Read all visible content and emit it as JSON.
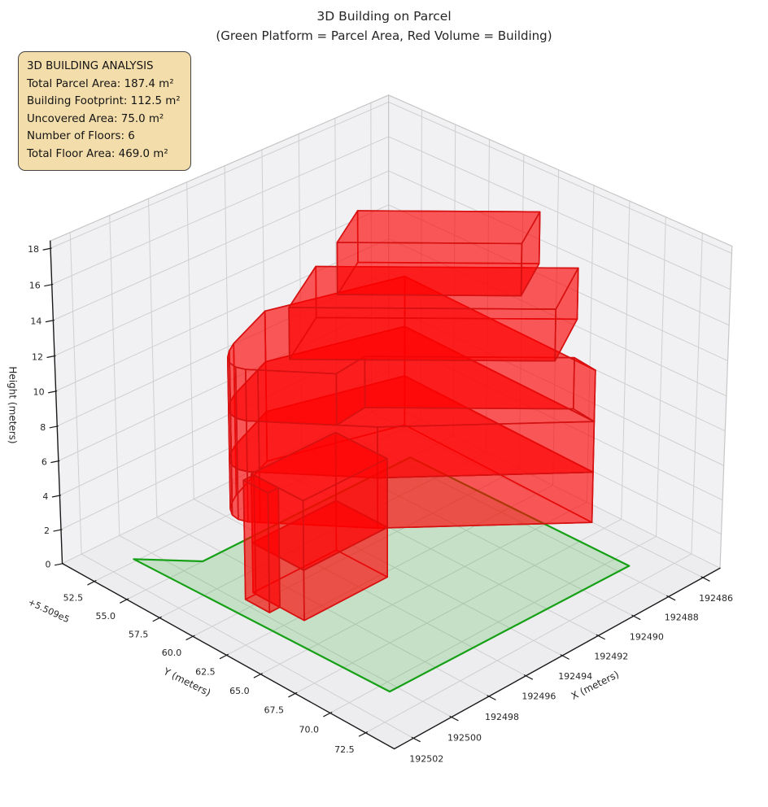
{
  "title": {
    "line1": "3D Building on Parcel",
    "line2": "(Green Platform = Parcel Area, Red Volume = Building)"
  },
  "info_box": {
    "bg": "#f3ddab",
    "border": "#454545",
    "lines": [
      "3D BUILDING ANALYSIS",
      "Total Parcel Area: 187.4 m²",
      "Building Footprint: 112.5 m²",
      "Uncovered Area: 75.0 m²",
      "Number of Floors: 6",
      "Total Floor Area: 469.0 m²"
    ]
  },
  "chart_data": {
    "type": "3d-building-plot",
    "title": "3D Building on Parcel",
    "subtitle": "(Green Platform = Parcel Area, Red Volume = Building)",
    "legend_note": "Green Platform = Parcel Area, Red Volume = Building",
    "axes": {
      "x": {
        "label": "X (meters)",
        "range": [
          192485,
          192503
        ],
        "ticks": [
          192486,
          192488,
          192490,
          192492,
          192494,
          192496,
          192498,
          192500,
          192502
        ],
        "tick_labels": [
          "192486",
          "192488",
          "192490",
          "192492",
          "192494",
          "192496",
          "192498",
          "192500",
          "192502"
        ]
      },
      "y": {
        "label": "Y (meters)",
        "range": [
          550950,
          550974.5
        ],
        "ticks": [
          550952.5,
          550955,
          550957.5,
          550960,
          550962.5,
          550965,
          550967.5,
          550970,
          550972.5
        ],
        "tick_labels": [
          "52.5",
          "55.0",
          "57.5",
          "60.0",
          "62.5",
          "65.0",
          "67.5",
          "70.0",
          "72.5"
        ],
        "offset_label": "+5.509e5"
      },
      "z": {
        "label": "Height (meters)",
        "range": [
          0,
          18.4
        ],
        "ticks": [
          0,
          2,
          4,
          6,
          8,
          10,
          12,
          14,
          16,
          18
        ],
        "tick_labels": [
          "0",
          "2",
          "4",
          "6",
          "8",
          "10",
          "12",
          "14",
          "16",
          "18"
        ]
      },
      "grid": true
    },
    "colors": {
      "pane": "#f1f1f3",
      "floor_pane": "#ededf0",
      "grid": "#cfcfcf",
      "pane_edge": "#c6c6c6",
      "axis_line": "#1a1a1a",
      "tick_text": "#262626",
      "building_fill": "rgba(255,0,0,0.40)",
      "building_edge": "#d61111",
      "parcel_fill": "rgba(0,158,0,0.17)",
      "parcel_edge": "#16a016"
    },
    "parcel": {
      "area_m2": 187.4,
      "polygon": [
        [
          192500.8,
          550952.3
        ],
        [
          192499.0,
          550955.0
        ],
        [
          192487.5,
          550955.0
        ],
        [
          192487.4,
          550971.0
        ],
        [
          192500.4,
          550970.7
        ]
      ]
    },
    "building": {
      "footprint_m2": 112.5,
      "uncovered_m2": 75.0,
      "floors": 6,
      "total_floor_area_m2": 469.0,
      "floor_height_m": 2.917,
      "top_height_m": 17.5,
      "volumes": [
        {
          "name": "floor-2",
          "z": [
            2.917,
            5.833
          ],
          "footprint": [
            [
              192497.16,
              550955.01
            ],
            [
              192497.66,
              550955.4
            ],
            [
              192498.07,
              550955.85
            ],
            [
              192498.32,
              550956.35
            ],
            [
              192498.38,
              550956.89
            ],
            [
              192498.24,
              550957.43
            ],
            [
              192497.94,
              550957.91
            ],
            [
              192495.01,
              550962.6
            ],
            [
              192488.8,
              550970.01
            ],
            [
              192488.57,
              550955.99
            ],
            [
              192494.49,
              550953.6
            ]
          ]
        },
        {
          "name": "floor-3",
          "z": [
            5.833,
            8.75
          ],
          "footprint": [
            [
              192497.16,
              550955.01
            ],
            [
              192497.66,
              550955.4
            ],
            [
              192498.07,
              550955.85
            ],
            [
              192498.32,
              550956.35
            ],
            [
              192498.38,
              550956.89
            ],
            [
              192498.24,
              550957.43
            ],
            [
              192497.94,
              550957.91
            ],
            [
              192495.01,
              550962.6
            ],
            [
              192488.8,
              550970.01
            ],
            [
              192488.57,
              550955.99
            ],
            [
              192494.49,
              550953.6
            ]
          ]
        },
        {
          "name": "floor-4",
          "z": [
            8.75,
            11.667
          ],
          "footprint": [
            [
              192497.16,
              550955.01
            ],
            [
              192497.66,
              550955.4
            ],
            [
              192498.07,
              550955.85
            ],
            [
              192498.32,
              550956.35
            ],
            [
              192498.38,
              550956.89
            ],
            [
              192498.24,
              550957.43
            ],
            [
              192497.94,
              550957.91
            ],
            [
              192496.02,
              550960.99
            ],
            [
              192494.29,
              550960.71
            ],
            [
              192488.65,
              550968.36
            ],
            [
              192488.8,
              550970.01
            ],
            [
              192488.57,
              550955.99
            ],
            [
              192494.49,
              550953.6
            ]
          ]
        },
        {
          "name": "floor-5",
          "z": [
            11.667,
            14.583
          ],
          "footprint": [
            [
              192496.5,
              550958.23
            ],
            [
              192489.37,
              550967.89
            ],
            [
              192486.31,
              550965.63
            ],
            [
              192493.44,
              550955.98
            ]
          ]
        },
        {
          "name": "floor-6",
          "z": [
            14.583,
            17.5
          ],
          "footprint": [
            [
              192494.46,
              550958.97
            ],
            [
              192489.53,
              550965.65
            ],
            [
              192487.12,
              550963.87
            ],
            [
              192492.05,
              550957.19
            ]
          ]
        },
        {
          "name": "annex-level-1",
          "z": [
            0,
            2.917
          ],
          "footprint": [
            [
              192499.2,
              550959.1
            ],
            [
              192499.2,
              550962.9
            ],
            [
              192494.7,
              550962.9
            ],
            [
              192494.7,
              550959.1
            ]
          ]
        },
        {
          "name": "annex-level-2",
          "z": [
            2.917,
            6.9
          ],
          "footprint": [
            [
              192499.2,
              550959.1
            ],
            [
              192499.2,
              550962.9
            ],
            [
              192494.7,
              550962.9
            ],
            [
              192494.7,
              550959.1
            ]
          ]
        },
        {
          "name": "annex-wing",
          "z": [
            0,
            6.9
          ],
          "footprint": [
            [
              192499.75,
              550959.3
            ],
            [
              192499.75,
              550961.1
            ],
            [
              192499.2,
              550961.1
            ],
            [
              192499.2,
              550959.3
            ]
          ]
        }
      ]
    }
  }
}
